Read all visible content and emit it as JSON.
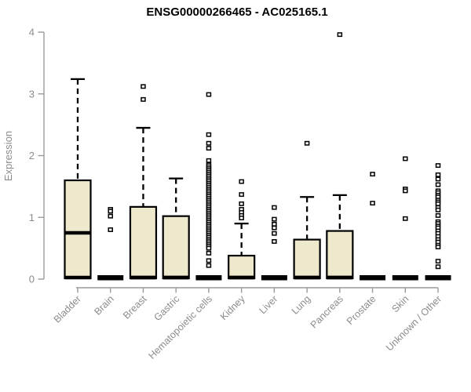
{
  "chart_data": {
    "type": "boxplot",
    "title": "ENSG00000266465 - AC025165.1",
    "ylabel": "Expression",
    "ylim": [
      0,
      4
    ],
    "yticks": [
      0,
      1,
      2,
      3,
      4
    ],
    "grid": false,
    "legend": "none",
    "box_fill": "#EEE8CD",
    "box_stroke": "#000000",
    "axis_color": "#9a9a9a",
    "label_color": "#8c8c8c",
    "categories": [
      "Bladder",
      "Brain",
      "Breast",
      "Gastric",
      "Hematopoietic cells",
      "Kidney",
      "Liver",
      "Lung",
      "Pancreas",
      "Prostate",
      "Skin",
      "Unknown / Other"
    ],
    "series": [
      {
        "category": "Bladder",
        "q1": 0.02,
        "median": 0.75,
        "q3": 1.6,
        "whisker_low": 0,
        "whisker_high": 3.24,
        "outliers": []
      },
      {
        "category": "Brain",
        "q1": 0,
        "median": 0,
        "q3": 0,
        "whisker_low": 0,
        "whisker_high": 0,
        "outliers": [
          1.13,
          1.1,
          1.02,
          0.8
        ]
      },
      {
        "category": "Breast",
        "q1": 0.02,
        "median": 0.02,
        "q3": 1.17,
        "whisker_low": 0,
        "whisker_high": 2.45,
        "outliers": [
          3.12,
          2.91
        ]
      },
      {
        "category": "Gastric",
        "q1": 0.02,
        "median": 0.02,
        "q3": 1.02,
        "whisker_low": 0,
        "whisker_high": 1.63,
        "outliers": []
      },
      {
        "category": "Hematopoietic cells",
        "q1": 0,
        "median": 0,
        "q3": 0,
        "whisker_low": 0,
        "whisker_high": 0,
        "outliers": [
          2.99,
          2.34,
          2.2,
          2.12,
          1.92,
          1.85,
          1.82,
          1.79,
          1.76,
          1.73,
          1.7,
          1.67,
          1.64,
          1.61,
          1.58,
          1.55,
          1.52,
          1.49,
          1.46,
          1.43,
          1.4,
          1.37,
          1.34,
          1.31,
          1.28,
          1.25,
          1.22,
          1.19,
          1.16,
          1.13,
          1.1,
          1.07,
          1.04,
          1.01,
          0.98,
          0.95,
          0.92,
          0.89,
          0.86,
          0.83,
          0.8,
          0.77,
          0.74,
          0.71,
          0.68,
          0.65,
          0.62,
          0.59,
          0.56,
          0.53,
          0.5,
          0.42,
          0.3,
          0.22
        ]
      },
      {
        "category": "Kidney",
        "q1": 0.02,
        "median": 0.02,
        "q3": 0.38,
        "whisker_low": 0,
        "whisker_high": 0.9,
        "outliers": [
          1.58,
          1.37,
          1.22,
          1.13,
          1.08,
          1.03,
          0.99
        ]
      },
      {
        "category": "Liver",
        "q1": 0,
        "median": 0,
        "q3": 0,
        "whisker_low": 0,
        "whisker_high": 0,
        "outliers": [
          1.16,
          0.97,
          0.89,
          0.83,
          0.74,
          0.61
        ]
      },
      {
        "category": "Lung",
        "q1": 0.02,
        "median": 0.02,
        "q3": 0.64,
        "whisker_low": 0,
        "whisker_high": 1.33,
        "outliers": [
          2.2
        ]
      },
      {
        "category": "Pancreas",
        "q1": 0.02,
        "median": 0.02,
        "q3": 0.78,
        "whisker_low": 0,
        "whisker_high": 1.36,
        "outliers": [
          3.96
        ]
      },
      {
        "category": "Prostate",
        "q1": 0,
        "median": 0,
        "q3": 0,
        "whisker_low": 0,
        "whisker_high": 0,
        "outliers": [
          1.7,
          1.23
        ]
      },
      {
        "category": "Skin",
        "q1": 0,
        "median": 0,
        "q3": 0,
        "whisker_low": 0,
        "whisker_high": 0,
        "outliers": [
          1.95,
          1.46,
          1.43,
          0.98
        ]
      },
      {
        "category": "Unknown / Other",
        "q1": 0,
        "median": 0,
        "q3": 0,
        "whisker_low": 0,
        "whisker_high": 0,
        "outliers": [
          1.84,
          1.69,
          1.62,
          1.53,
          1.43,
          1.4,
          1.36,
          1.33,
          1.28,
          1.25,
          1.22,
          1.16,
          1.12,
          1.03,
          0.93,
          0.9,
          0.86,
          0.83,
          0.78,
          0.74,
          0.69,
          0.64,
          0.6,
          0.55,
          0.52,
          0.29,
          0.2
        ]
      }
    ]
  }
}
